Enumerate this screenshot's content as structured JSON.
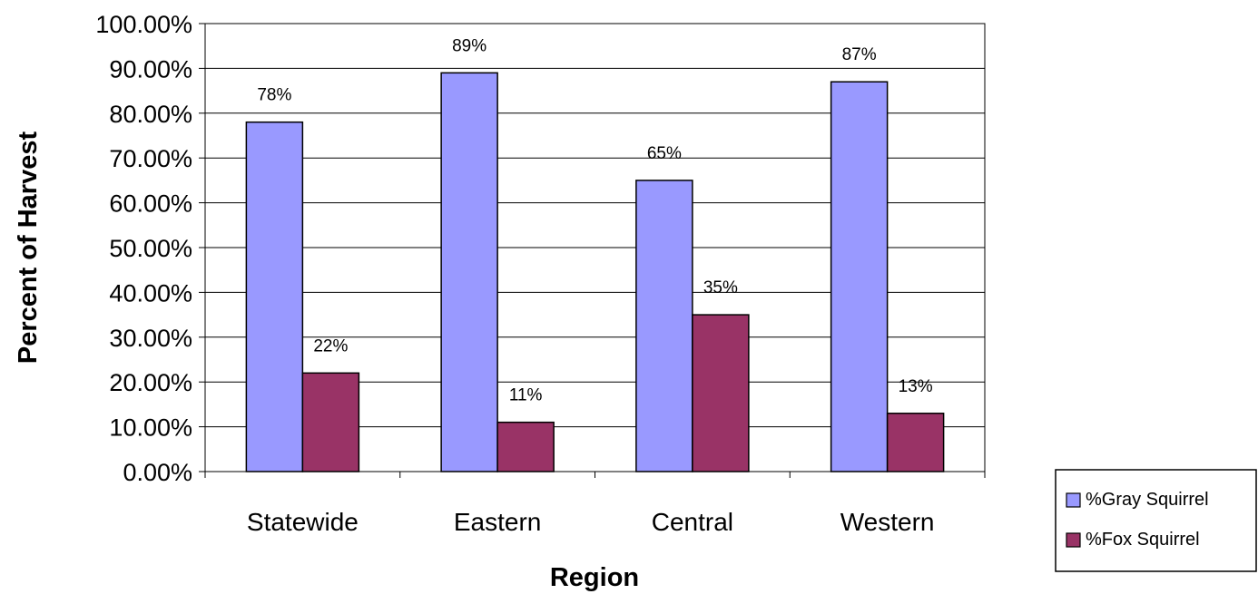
{
  "chart_data": {
    "type": "bar",
    "title": "",
    "xlabel": "Region",
    "ylabel": "Percent of Harvest",
    "ylim": [
      0,
      100
    ],
    "ytick_labels": [
      "0.00%",
      "10.00%",
      "20.00%",
      "30.00%",
      "40.00%",
      "50.00%",
      "60.00%",
      "70.00%",
      "80.00%",
      "90.00%",
      "100.00%"
    ],
    "categories": [
      "Statewide",
      "Eastern",
      "Central",
      "Western"
    ],
    "series": [
      {
        "name": "%Gray Squirrel",
        "color": "#9999ff",
        "values": [
          78,
          89,
          65,
          87
        ],
        "labels": [
          "78%",
          "89%",
          "65%",
          "87%"
        ]
      },
      {
        "name": "%Fox Squirrel",
        "color": "#993366",
        "values": [
          22,
          11,
          35,
          13
        ],
        "labels": [
          "22%",
          "11%",
          "35%",
          "13%"
        ]
      }
    ],
    "grid": true,
    "legend_position": "right"
  }
}
